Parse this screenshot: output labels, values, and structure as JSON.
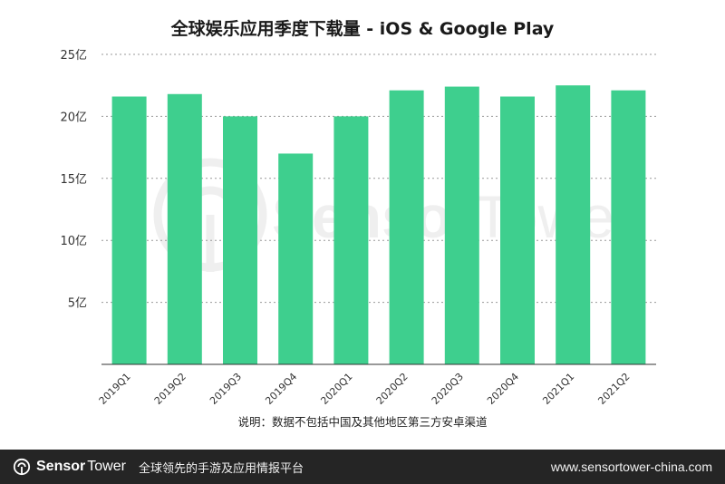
{
  "chart_data": {
    "type": "bar",
    "title": "全球娱乐应用季度下载量 - iOS & Google Play",
    "categories": [
      "2019Q1",
      "2019Q2",
      "2019Q3",
      "2019Q4",
      "2020Q1",
      "2020Q2",
      "2020Q3",
      "2020Q4",
      "2021Q1",
      "2021Q2"
    ],
    "values": [
      21.6,
      21.8,
      20.0,
      17.0,
      20.0,
      22.1,
      22.4,
      21.6,
      22.5,
      22.1
    ],
    "y_ticks": [
      {
        "value": 5,
        "label": "5亿"
      },
      {
        "value": 10,
        "label": "10亿"
      },
      {
        "value": 15,
        "label": "15亿"
      },
      {
        "value": 20,
        "label": "20亿"
      },
      {
        "value": 25,
        "label": "25亿"
      }
    ],
    "ylim": [
      0,
      25
    ],
    "xlabel": "",
    "ylabel": "",
    "grid": true,
    "bar_color": "#3ecf8e",
    "note": "说明：数据不包括中国及其他地区第三方安卓渠道"
  },
  "watermark": {
    "text_sensor": "Sensor",
    "text_tower": "Tower",
    "icon": "sensortower-logo-icon"
  },
  "footer": {
    "brand_sensor": "Sensor",
    "brand_tower": "Tower",
    "logo_icon": "sensortower-logo-icon",
    "tagline": "全球领先的手游及应用情报平台",
    "url": "www.sensortower-china.com",
    "background": "#252525"
  }
}
